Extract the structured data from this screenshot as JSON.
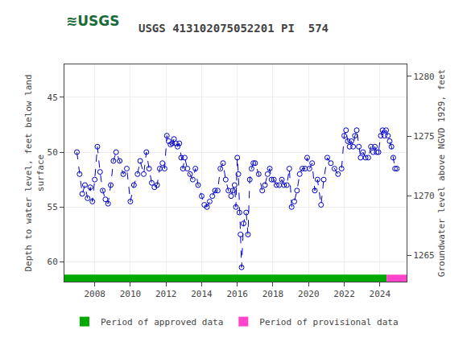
{
  "chart_data": {
    "type": "line",
    "title": "USGS 413102075052201 PI  574",
    "ylabel": "Depth to water level, feet below land\nsurface",
    "y2label": "Groundwater level above NGVD 1929, feet",
    "annotations": [
      {
        "text": "≋USGS",
        "color": "#1a6b3a"
      }
    ],
    "x": [
      2007.0,
      2007.15,
      2007.3,
      2007.45,
      2007.6,
      2007.75,
      2007.87,
      2008.0,
      2008.15,
      2008.3,
      2008.45,
      2008.6,
      2008.75,
      2008.9,
      2009.05,
      2009.2,
      2009.4,
      2009.6,
      2009.8,
      2010.0,
      2010.2,
      2010.4,
      2010.55,
      2010.75,
      2010.9,
      2011.05,
      2011.2,
      2011.35,
      2011.5,
      2011.65,
      2011.8,
      2011.92,
      2012.05,
      2012.15,
      2012.25,
      2012.35,
      2012.45,
      2012.55,
      2012.65,
      2012.75,
      2012.85,
      2012.95,
      2013.05,
      2013.2,
      2013.35,
      2013.5,
      2013.65,
      2013.8,
      2014.0,
      2014.15,
      2014.3,
      2014.45,
      2014.6,
      2014.75,
      2014.9,
      2015.05,
      2015.2,
      2015.35,
      2015.5,
      2015.65,
      2015.75,
      2015.85,
      2015.92,
      2016.0,
      2016.06,
      2016.12,
      2016.18,
      2016.24,
      2016.35,
      2016.5,
      2016.6,
      2016.7,
      2016.8,
      2016.9,
      2017.0,
      2017.2,
      2017.4,
      2017.55,
      2017.7,
      2017.82,
      2017.92,
      2018.05,
      2018.2,
      2018.35,
      2018.5,
      2018.62,
      2018.78,
      2018.92,
      2019.05,
      2019.2,
      2019.35,
      2019.5,
      2019.65,
      2019.8,
      2019.92,
      2020.05,
      2020.2,
      2020.35,
      2020.5,
      2020.7,
      2020.85,
      2021.05,
      2021.25,
      2021.45,
      2021.65,
      2021.85,
      2022.0,
      2022.1,
      2022.2,
      2022.3,
      2022.4,
      2022.5,
      2022.6,
      2022.7,
      2022.82,
      2022.92,
      2023.05,
      2023.2,
      2023.35,
      2023.5,
      2023.62,
      2023.72,
      2023.82,
      2023.92,
      2024.05,
      2024.15,
      2024.25,
      2024.35,
      2024.45,
      2024.55,
      2024.65,
      2024.75,
      2024.85,
      2024.95
    ],
    "series": [
      {
        "color": "#0000cc",
        "marker": "circle-open",
        "line_style": "dash",
        "values": [
          50.0,
          52.0,
          53.8,
          53.0,
          54.2,
          53.2,
          54.5,
          52.5,
          49.5,
          51.8,
          53.5,
          54.3,
          54.7,
          53.0,
          50.8,
          50.0,
          50.8,
          52.0,
          51.5,
          54.5,
          53.0,
          52.0,
          50.8,
          52.0,
          50.0,
          51.5,
          52.8,
          53.2,
          53.0,
          51.5,
          51.0,
          51.5,
          48.5,
          49.0,
          49.3,
          49.2,
          48.8,
          49.2,
          49.5,
          49.2,
          50.5,
          51.5,
          50.5,
          51.5,
          52.0,
          52.5,
          51.5,
          53.0,
          54.0,
          54.8,
          55.0,
          54.5,
          54.0,
          53.5,
          53.5,
          51.5,
          51.0,
          52.5,
          53.5,
          54.0,
          53.5,
          53.0,
          55.0,
          50.5,
          52.0,
          55.5,
          57.5,
          60.5,
          56.5,
          55.5,
          57.5,
          52.5,
          51.5,
          51.0,
          51.0,
          52.0,
          53.5,
          53.0,
          52.0,
          51.5,
          52.5,
          52.5,
          53.0,
          53.0,
          52.5,
          53.0,
          53.0,
          51.5,
          55.0,
          54.5,
          53.5,
          52.0,
          51.5,
          51.5,
          50.5,
          51.5,
          51.0,
          53.5,
          52.5,
          54.8,
          52.5,
          50.5,
          51.0,
          51.5,
          52.0,
          51.5,
          48.5,
          48.0,
          49.0,
          49.5,
          49.0,
          49.5,
          48.5,
          48.0,
          49.5,
          50.5,
          50.0,
          50.5,
          50.5,
          49.5,
          50.0,
          49.5,
          50.0,
          50.0,
          48.5,
          48.0,
          48.5,
          48.0,
          48.5,
          49.0,
          49.5,
          50.5,
          51.5,
          51.5
        ]
      }
    ],
    "periods": [
      {
        "name": "Period of approved data",
        "color": "#00aa00",
        "start": 2006.3,
        "end": 2024.38
      },
      {
        "name": "Period of provisional data",
        "color": "#ff44cc",
        "start": 2024.38,
        "end": 2025.5
      }
    ],
    "xlim": [
      2006.3,
      2025.5
    ],
    "xticks": [
      2008,
      2010,
      2012,
      2014,
      2016,
      2018,
      2020,
      2022,
      2024
    ],
    "ylim": [
      61.8,
      42.0
    ],
    "yticks": [
      45,
      50,
      55,
      60
    ],
    "y2lim": [
      1262.82,
      1281.0
    ],
    "y2ticks": [
      1265,
      1270,
      1275,
      1280
    ],
    "grid": true,
    "legend": "bottom"
  }
}
